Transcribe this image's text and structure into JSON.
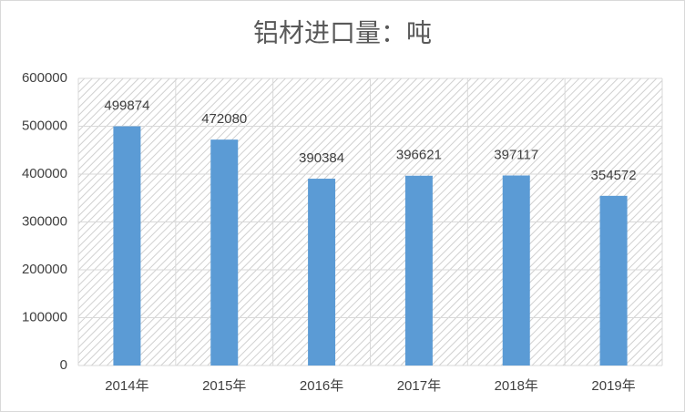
{
  "chart_data": {
    "type": "bar",
    "title": "铝材进口量：吨",
    "categories": [
      "2014年",
      "2015年",
      "2016年",
      "2017年",
      "2018年",
      "2019年"
    ],
    "values": [
      499874,
      472080,
      390384,
      396621,
      397117,
      354572
    ],
    "color": "#5b9bd5",
    "ylim": [
      0,
      600000
    ],
    "yticks": [
      0,
      100000,
      200000,
      300000,
      400000,
      500000,
      600000
    ],
    "grid": true
  }
}
